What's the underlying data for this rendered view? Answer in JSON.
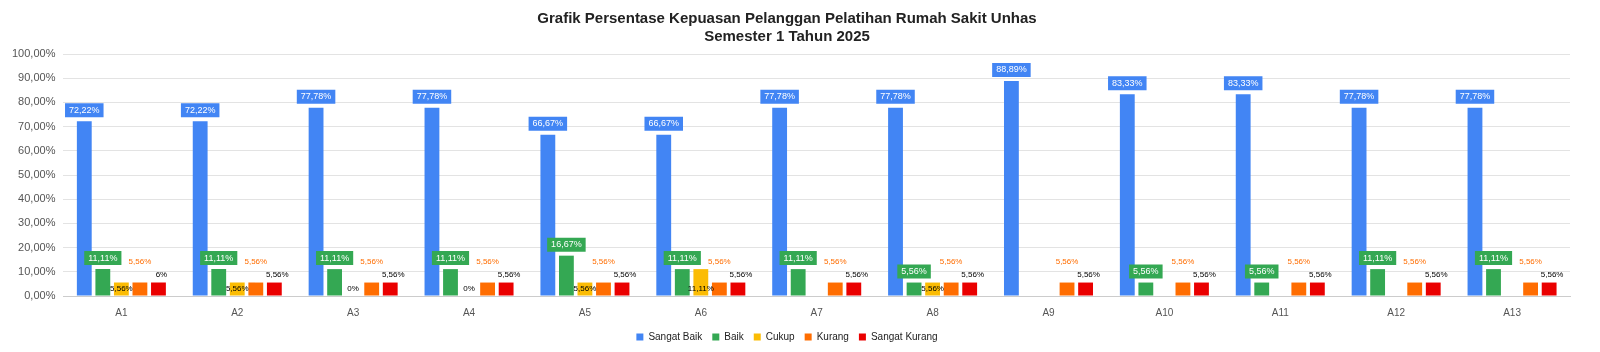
{
  "chart_data": {
    "type": "bar",
    "title": "Grafik Persentase Kepuasan Pelanggan Pelatihan Rumah Sakit Unhas",
    "subtitle": "Semester 1 Tahun 2025",
    "categories": [
      "A1",
      "A2",
      "A3",
      "A4",
      "A5",
      "A6",
      "A7",
      "A8",
      "A9",
      "A10",
      "A11",
      "A12",
      "A13"
    ],
    "series": [
      {
        "name": "Sangat Baik",
        "color": "#4285f4",
        "values": [
          72.22,
          72.22,
          77.78,
          77.78,
          66.67,
          66.67,
          77.78,
          77.78,
          88.89,
          83.33,
          83.33,
          77.78,
          77.78
        ],
        "value_labels": [
          "72,22%",
          "72,22%",
          "77,78%",
          "77,78%",
          "66,67%",
          "66,67%",
          "77,78%",
          "77,78%",
          "88,89%",
          "83,33%",
          "83,33%",
          "77,78%",
          "77,78%"
        ]
      },
      {
        "name": "Baik",
        "color": "#34a853",
        "values": [
          11.11,
          11.11,
          11.11,
          11.11,
          16.67,
          11.11,
          11.11,
          5.56,
          null,
          5.56,
          5.56,
          11.11,
          11.11
        ],
        "value_labels": [
          "11,11%",
          "11,11%",
          "11,11%",
          "11,11%",
          "16,67%",
          "11,11%",
          "11,11%",
          "5,56%",
          null,
          "5,56%",
          "5,56%",
          "11,11%",
          "11,11%"
        ]
      },
      {
        "name": "Cukup",
        "color": "#fbbc04",
        "values": [
          5.56,
          5.56,
          0,
          0,
          5.56,
          11.11,
          null,
          5.56,
          null,
          null,
          null,
          null,
          null
        ],
        "value_labels": [
          "5,56%",
          "5,56%",
          "0%",
          "0%",
          "5,56%",
          "11,11%",
          null,
          "5,56%",
          null,
          null,
          null,
          null,
          null
        ]
      },
      {
        "name": "Kurang",
        "color": "#ff6d01",
        "values": [
          5.56,
          5.56,
          5.56,
          5.56,
          5.56,
          5.56,
          5.56,
          5.56,
          5.56,
          5.56,
          5.56,
          5.56,
          5.56
        ],
        "value_labels": [
          "5,56%",
          "5,56%",
          "5,56%",
          "5,56%",
          "5,56%",
          "5,56%",
          "5,56%",
          "5,56%",
          "5,56%",
          "5,56%",
          "5,56%",
          "5,56%",
          "5,56%"
        ]
      },
      {
        "name": "Sangat Kurang",
        "color": "#ea0000",
        "values": [
          5.56,
          5.56,
          5.56,
          5.56,
          5.56,
          5.56,
          5.56,
          5.56,
          5.56,
          5.56,
          5.56,
          5.56,
          5.56
        ],
        "value_labels": [
          "6%",
          "5,56%",
          "5,56%",
          "5,56%",
          "5,56%",
          "5,56%",
          "5,56%",
          "5,56%",
          "5,56%",
          "5,56%",
          "5,56%",
          "5,56%",
          "5,56%"
        ]
      }
    ],
    "ylim": [
      0,
      100
    ],
    "yticks": [
      {
        "value": 0,
        "label": "0,00%"
      },
      {
        "value": 10,
        "label": "10,00%"
      },
      {
        "value": 20,
        "label": "20,00%"
      },
      {
        "value": 30,
        "label": "30,00%"
      },
      {
        "value": 40,
        "label": "40,00%"
      },
      {
        "value": 50,
        "label": "50,00%"
      },
      {
        "value": 60,
        "label": "60,00%"
      },
      {
        "value": 70,
        "label": "70,00%"
      },
      {
        "value": 80,
        "label": "80,00%"
      },
      {
        "value": 90,
        "label": "90,00%"
      },
      {
        "value": 100,
        "label": "100,00%"
      }
    ],
    "grid": "y",
    "legend": "bottom"
  }
}
